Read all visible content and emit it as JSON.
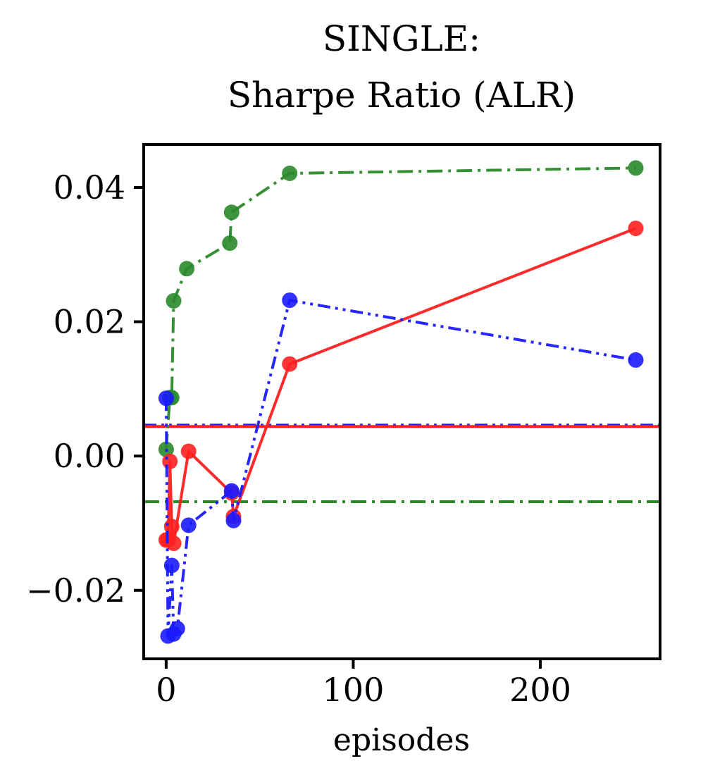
{
  "chart_data": {
    "type": "line",
    "title_lines": [
      "SINGLE:",
      "Sharpe Ratio (ALR)"
    ],
    "xlabel": "episodes",
    "ylabel": "",
    "xlim": [
      -12,
      264
    ],
    "ylim": [
      -0.0302,
      0.0464
    ],
    "x_ticks": [
      {
        "value": 0,
        "label": "0"
      },
      {
        "value": 100,
        "label": "100"
      },
      {
        "value": 200,
        "label": "200"
      }
    ],
    "y_ticks": [
      {
        "value": 0.04,
        "label": "0.04"
      },
      {
        "value": 0.02,
        "label": "0.02"
      },
      {
        "value": 0.0,
        "label": "0.00"
      },
      {
        "value": -0.02,
        "label": "−0.02"
      }
    ],
    "grid": false,
    "series": [
      {
        "name": "green",
        "color": "#2a8a2a",
        "style": "dashdot",
        "x": [
          0,
          2,
          3,
          4,
          11,
          34,
          35,
          66,
          251
        ],
        "y": [
          0.001,
          0.0087,
          0.0087,
          0.0231,
          0.0279,
          0.0317,
          0.0363,
          0.0421,
          0.0429
        ]
      },
      {
        "name": "red",
        "color": "#ff2020",
        "style": "solid",
        "x": [
          0,
          1,
          2,
          3,
          4,
          12,
          35,
          36,
          66,
          251
        ],
        "y": [
          -0.0125,
          -0.0125,
          -0.0008,
          -0.0105,
          -0.013,
          0.0007,
          -0.0055,
          -0.009,
          0.0137,
          0.0339
        ]
      },
      {
        "name": "blue",
        "color": "#1a1aff",
        "style": "dashdotdot",
        "x": [
          0,
          1,
          3,
          4,
          6,
          12,
          35,
          36,
          66,
          251
        ],
        "y": [
          0.0086,
          -0.0268,
          -0.0163,
          -0.0265,
          -0.0257,
          -0.0103,
          -0.0052,
          -0.0096,
          0.0232,
          0.0143
        ]
      }
    ],
    "baselines": [
      {
        "name": "blue-baseline",
        "color": "#1a1aff",
        "style": "dashdotdot",
        "y": 0.0046
      },
      {
        "name": "red-baseline",
        "color": "#ff2020",
        "style": "solid",
        "y": 0.0044
      },
      {
        "name": "green-baseline",
        "color": "#2a8a2a",
        "style": "dashdot",
        "y": -0.0068
      }
    ]
  }
}
